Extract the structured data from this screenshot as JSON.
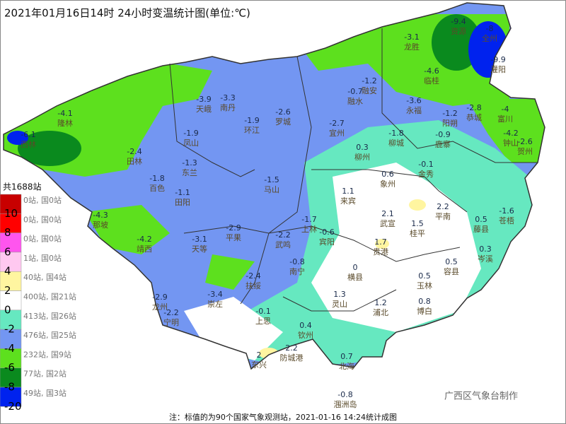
{
  "header": {
    "title": "2021年01月16日14时  24小时变温统计图(单位:℃)"
  },
  "legend": {
    "total": "共1688站",
    "items": [
      {
        "color": "#c80000",
        "count": "0站, 国0站"
      },
      {
        "color": "#ff0000",
        "count": "0站, 国0站"
      },
      {
        "color": "#ff55ee",
        "count": "0站, 国0站"
      },
      {
        "color": "#ffc8f0",
        "count": "1站, 国0站"
      },
      {
        "color": "#fff5a0",
        "count": "40站, 国4站"
      },
      {
        "color": "#ffffff",
        "count": "400站, 国21站"
      },
      {
        "color": "#66e8c0",
        "count": "413站, 国26站"
      },
      {
        "color": "#7396f2",
        "count": "476站, 国25站"
      },
      {
        "color": "#5de01e",
        "count": "232站, 国9站"
      },
      {
        "color": "#0a8a1e",
        "count": "77站, 国2站"
      },
      {
        "color": "#0022ee",
        "count": "49站, 国3站"
      }
    ],
    "thresholds": [
      10,
      8,
      6,
      4,
      2,
      0,
      -2,
      -4,
      -6,
      -8,
      -20
    ]
  },
  "stations": [
    {
      "name": "资源",
      "value": -9.4
    },
    {
      "name": "全州",
      "value": -8
    },
    {
      "name": "灌阳",
      "value": -9.9
    },
    {
      "name": "龙胜",
      "value": -3.1
    },
    {
      "name": "临桂",
      "value": -4.6
    },
    {
      "name": "永福",
      "value": -3.6
    },
    {
      "name": "融安",
      "value": -1.2
    },
    {
      "name": "融水",
      "value": -0.7
    },
    {
      "name": "阳朔",
      "value": -1.2
    },
    {
      "name": "恭城",
      "value": -2.8
    },
    {
      "name": "富川",
      "value": -4
    },
    {
      "name": "钟山",
      "value": -4.2
    },
    {
      "name": "贺州",
      "value": -2.6
    },
    {
      "name": "罗城",
      "value": -2.6
    },
    {
      "name": "环江",
      "value": -1.9
    },
    {
      "name": "南丹",
      "value": -3.3
    },
    {
      "name": "天峨",
      "value": -3.9
    },
    {
      "name": "隆林",
      "value": -4.1
    },
    {
      "name": "西林",
      "value": -6.1
    },
    {
      "name": "田林",
      "value": -2.4
    },
    {
      "name": "凤山",
      "value": -1.9
    },
    {
      "name": "东兰",
      "value": -1.3
    },
    {
      "name": "宜州",
      "value": -2.7
    },
    {
      "name": "柳城",
      "value": -1.8
    },
    {
      "name": "鹿寨",
      "value": -0.9
    },
    {
      "name": "柳州",
      "value": 0.3
    },
    {
      "name": "象州",
      "value": 0.6
    },
    {
      "name": "金秀",
      "value": -0.1
    },
    {
      "name": "百色",
      "value": -1.8
    },
    {
      "name": "田阳",
      "value": -1.1
    },
    {
      "name": "那坡",
      "value": -4.3
    },
    {
      "name": "靖西",
      "value": -4.2
    },
    {
      "name": "平果",
      "value": -2.9
    },
    {
      "name": "马山",
      "value": -1.5
    },
    {
      "name": "上林",
      "value": -1.7
    },
    {
      "name": "宾阳",
      "value": -0.6
    },
    {
      "name": "来宾",
      "value": 1.1
    },
    {
      "name": "武宣",
      "value": 2.1
    },
    {
      "name": "桂平",
      "value": 1.5
    },
    {
      "name": "平南",
      "value": 2.2
    },
    {
      "name": "藤县",
      "value": 0.5
    },
    {
      "name": "苍梧",
      "value": -1.6
    },
    {
      "name": "岑溪",
      "value": 0.3
    },
    {
      "name": "容县",
      "value": 0.5
    },
    {
      "name": "玉林",
      "value": 0.5
    },
    {
      "name": "贵港",
      "value": 1.7
    },
    {
      "name": "横县",
      "value": 0
    },
    {
      "name": "灵山",
      "value": 1.3
    },
    {
      "name": "浦北",
      "value": 1.2
    },
    {
      "name": "博白",
      "value": 0.8
    },
    {
      "name": "南宁",
      "value": -0.8
    },
    {
      "name": "武鸣",
      "value": -2.2
    },
    {
      "name": "扶绥",
      "value": -2.4
    },
    {
      "name": "崇左",
      "value": -3.4
    },
    {
      "name": "天等",
      "value": -3.1
    },
    {
      "name": "龙州",
      "value": -2.9
    },
    {
      "name": "宁明",
      "value": -2.2
    },
    {
      "name": "上思",
      "value": -0.1
    },
    {
      "name": "钦州",
      "value": 0.4
    },
    {
      "name": "东兴",
      "value": 2
    },
    {
      "name": "防城港",
      "value": 2.2
    },
    {
      "name": "北海",
      "value": 0.7
    },
    {
      "name": "涠洲岛",
      "value": -0.8
    }
  ],
  "credit": "广西区气象台制作",
  "footer": "注：标值的为90个国家气象观测站，2021-01-16 14:24统计成图"
}
